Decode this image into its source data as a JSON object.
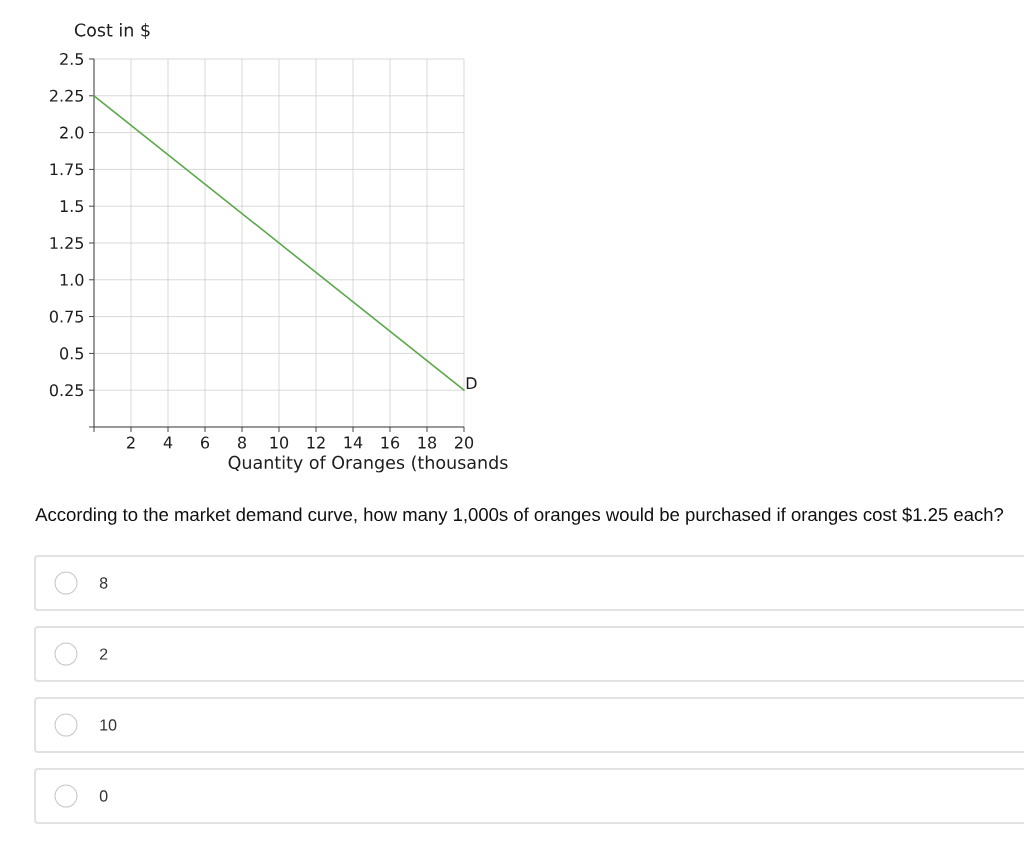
{
  "chart_data": {
    "type": "line",
    "ylabel": "Cost in $",
    "xlabel": "Quantity of Oranges (thousands",
    "xlim": [
      0,
      20
    ],
    "ylim": [
      0,
      2.5
    ],
    "xticks": [
      {
        "value": 0,
        "label": null
      },
      2,
      4,
      6,
      8,
      10,
      12,
      14,
      16,
      18,
      20
    ],
    "yticks": [
      {
        "value": 0,
        "label": null
      },
      0.25,
      0.5,
      0.75,
      {
        "value": 1,
        "label": "1.0"
      },
      1.25,
      1.5,
      1.75,
      {
        "value": 2,
        "label": "2.0"
      },
      2.25,
      2.5
    ],
    "series": [
      {
        "color": "#5ba84a",
        "x": [
          0,
          20
        ],
        "values": [
          2.25,
          0.25
        ]
      }
    ],
    "grid": true,
    "line_style": "solid",
    "annotations": [
      {
        "text": "D",
        "x": 20,
        "y": 0.25
      },
      "According to the market demand curve, how many 1,000s of oranges would be purchased if oranges cost $1.25 each?",
      "8",
      "2",
      "10",
      "0"
    ]
  }
}
